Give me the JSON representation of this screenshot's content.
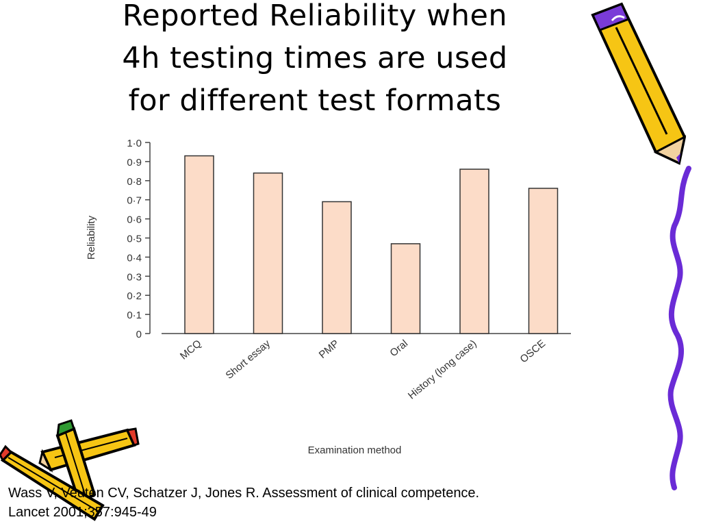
{
  "slide": {
    "title_lines": [
      "Reported Reliability when",
      "4h testing times are used",
      "for different test formats"
    ],
    "citation_lines": [
      "Wass V, Veuten CV, Schatzer J, Jones R. Assessment of clinical competence.",
      " Lancet 2001;357:945-49"
    ]
  },
  "chart_data": {
    "type": "bar",
    "title": "",
    "xlabel": "Examination method",
    "ylabel": "Reliability",
    "categories": [
      "MCQ",
      "Short essay",
      "PMP",
      "Oral",
      "History (long case)",
      "OSCE"
    ],
    "values": [
      0.93,
      0.84,
      0.69,
      0.47,
      0.86,
      0.76
    ],
    "ylim": [
      0,
      1.0
    ],
    "yticks": [
      "0",
      "0·1",
      "0·2",
      "0·3",
      "0·4",
      "0·5",
      "0·6",
      "0·7",
      "0·8",
      "0·9",
      "1·0"
    ],
    "grid": false,
    "bar_color": "#fcdcc8",
    "bar_edge_color": "#333333"
  },
  "decorations": {
    "icons": [
      "pencil-icon",
      "pencil-icon",
      "pencil-icon",
      "squiggle-border"
    ],
    "pencil_body_color": "#f6c514",
    "pencil_outline_color": "#000000",
    "squiggle_color": "#6a2bd6"
  }
}
